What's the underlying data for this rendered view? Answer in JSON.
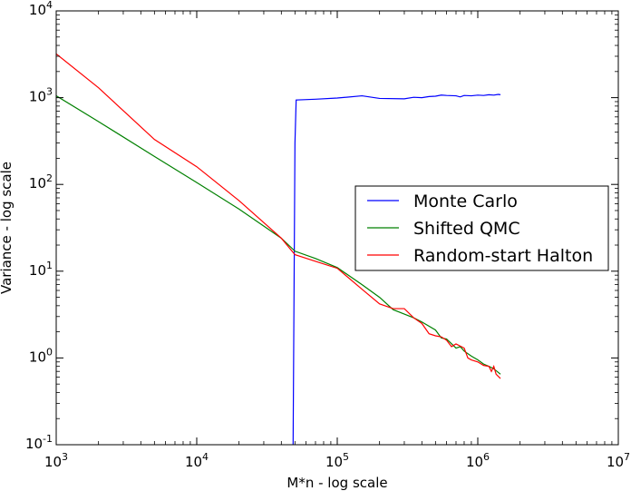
{
  "chart_data": {
    "type": "line",
    "title": "",
    "xlabel": "M*n - log scale",
    "ylabel": "Variance - log scale",
    "xscale": "log",
    "yscale": "log",
    "xlim": [
      1000,
      10000000
    ],
    "ylim": [
      0.1,
      10000
    ],
    "x_ticks": [
      {
        "value": 1000,
        "base": "10",
        "exp": "3"
      },
      {
        "value": 10000,
        "base": "10",
        "exp": "4"
      },
      {
        "value": 100000,
        "base": "10",
        "exp": "5"
      },
      {
        "value": 1000000,
        "base": "10",
        "exp": "6"
      },
      {
        "value": 10000000,
        "base": "10",
        "exp": "7"
      }
    ],
    "y_ticks": [
      {
        "value": 0.1,
        "base": "10",
        "exp": "-1"
      },
      {
        "value": 1,
        "base": "10",
        "exp": "0"
      },
      {
        "value": 10,
        "base": "10",
        "exp": "1"
      },
      {
        "value": 100,
        "base": "10",
        "exp": "2"
      },
      {
        "value": 1000,
        "base": "10",
        "exp": "3"
      },
      {
        "value": 10000,
        "base": "10",
        "exp": "4"
      }
    ],
    "grid": false,
    "legend_position": "center-right",
    "series": [
      {
        "name": "Monte Carlo",
        "color": "#0000ff",
        "points": [
          [
            48500,
            0.1
          ],
          [
            50000,
            300
          ],
          [
            51000,
            940
          ],
          [
            70000,
            960
          ],
          [
            100000,
            990
          ],
          [
            150000,
            1050
          ],
          [
            200000,
            980
          ],
          [
            300000,
            970
          ],
          [
            350000,
            1010
          ],
          [
            400000,
            1000
          ],
          [
            450000,
            1030
          ],
          [
            500000,
            1040
          ],
          [
            550000,
            1070
          ],
          [
            600000,
            1060
          ],
          [
            700000,
            1050
          ],
          [
            750000,
            1020
          ],
          [
            800000,
            1060
          ],
          [
            900000,
            1050
          ],
          [
            1000000,
            1070
          ],
          [
            1100000,
            1060
          ],
          [
            1200000,
            1080
          ],
          [
            1300000,
            1070
          ],
          [
            1400000,
            1090
          ],
          [
            1450000,
            1080
          ]
        ]
      },
      {
        "name": "Shifted QMC",
        "color": "#008000",
        "points": [
          [
            1000,
            1050
          ],
          [
            2000,
            530
          ],
          [
            5000,
            210
          ],
          [
            10000,
            105
          ],
          [
            20000,
            52
          ],
          [
            40000,
            24
          ],
          [
            50000,
            17
          ],
          [
            70000,
            14
          ],
          [
            100000,
            11
          ],
          [
            150000,
            7
          ],
          [
            200000,
            5
          ],
          [
            250000,
            3.6
          ],
          [
            300000,
            3.2
          ],
          [
            350000,
            2.9
          ],
          [
            400000,
            2.6
          ],
          [
            500000,
            2.1
          ],
          [
            550000,
            1.7
          ],
          [
            600000,
            1.65
          ],
          [
            700000,
            1.3
          ],
          [
            750000,
            1.35
          ],
          [
            800000,
            1.2
          ],
          [
            900000,
            1.05
          ],
          [
            1000000,
            0.95
          ],
          [
            1100000,
            0.85
          ],
          [
            1200000,
            0.8
          ],
          [
            1300000,
            0.75
          ],
          [
            1450000,
            0.65
          ]
        ]
      },
      {
        "name": "Random-start Halton",
        "color": "#ff0000",
        "points": [
          [
            1000,
            3200
          ],
          [
            2000,
            1300
          ],
          [
            5000,
            330
          ],
          [
            10000,
            160
          ],
          [
            20000,
            65
          ],
          [
            40000,
            24
          ],
          [
            50000,
            15.5
          ],
          [
            70000,
            13
          ],
          [
            100000,
            10.8
          ],
          [
            150000,
            6.2
          ],
          [
            200000,
            4.2
          ],
          [
            250000,
            3.7
          ],
          [
            300000,
            3.7
          ],
          [
            350000,
            2.9
          ],
          [
            400000,
            2.5
          ],
          [
            450000,
            1.9
          ],
          [
            500000,
            1.8
          ],
          [
            550000,
            1.75
          ],
          [
            600000,
            1.6
          ],
          [
            650000,
            1.35
          ],
          [
            700000,
            1.45
          ],
          [
            800000,
            1.3
          ],
          [
            850000,
            1.0
          ],
          [
            900000,
            0.95
          ],
          [
            1000000,
            0.9
          ],
          [
            1100000,
            0.82
          ],
          [
            1200000,
            0.8
          ],
          [
            1250000,
            0.7
          ],
          [
            1300000,
            0.8
          ],
          [
            1350000,
            0.65
          ],
          [
            1450000,
            0.58
          ]
        ]
      }
    ]
  }
}
